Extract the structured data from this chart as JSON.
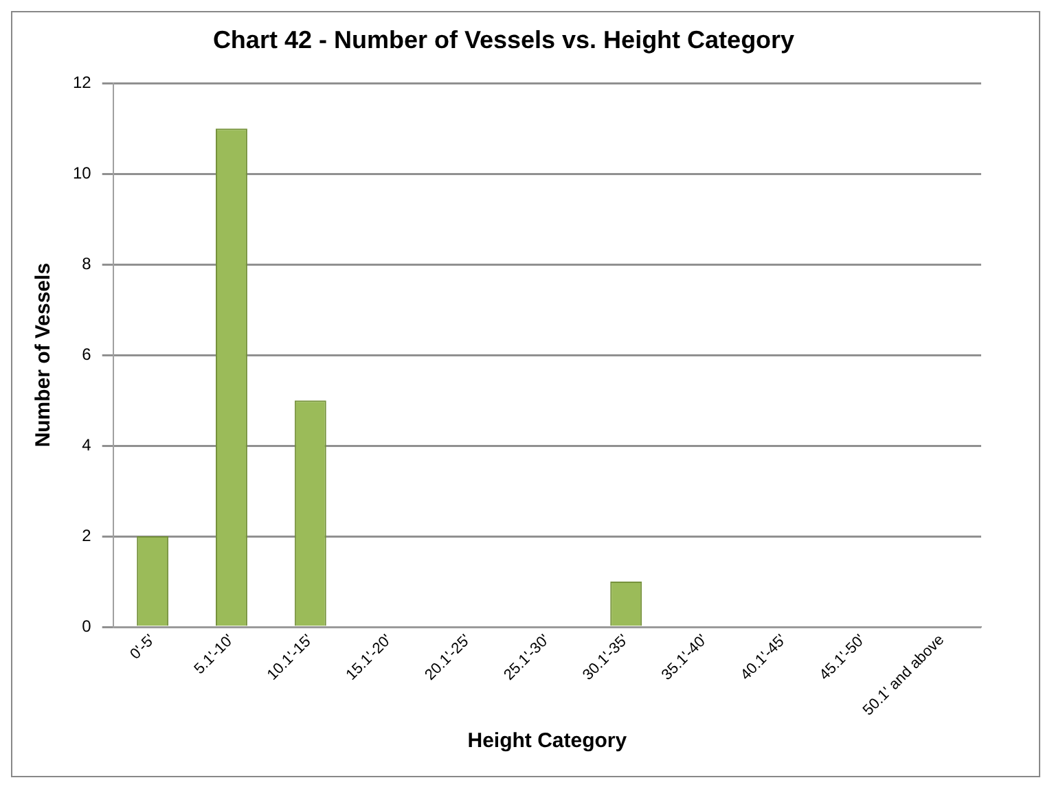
{
  "chart_data": {
    "type": "bar",
    "title": "Chart 42 - Number of Vessels vs. Height Category",
    "xlabel": "Height Category",
    "ylabel": "Number of Vessels",
    "categories": [
      "0'-5'",
      "5.1'-10'",
      "10.1'-15'",
      "15.1'-20'",
      "20.1'-25'",
      "25.1'-30'",
      "30.1'-35'",
      "35.1'-40'",
      "40.1'-45'",
      "45.1'-50'",
      "50.1' and above"
    ],
    "values": [
      2,
      11,
      5,
      0,
      0,
      0,
      1,
      0,
      0,
      0,
      0
    ],
    "color": "#9bbb59",
    "ylim": [
      0,
      12
    ],
    "yticks": [
      0,
      2,
      4,
      6,
      8,
      10,
      12
    ],
    "grid": "y"
  }
}
